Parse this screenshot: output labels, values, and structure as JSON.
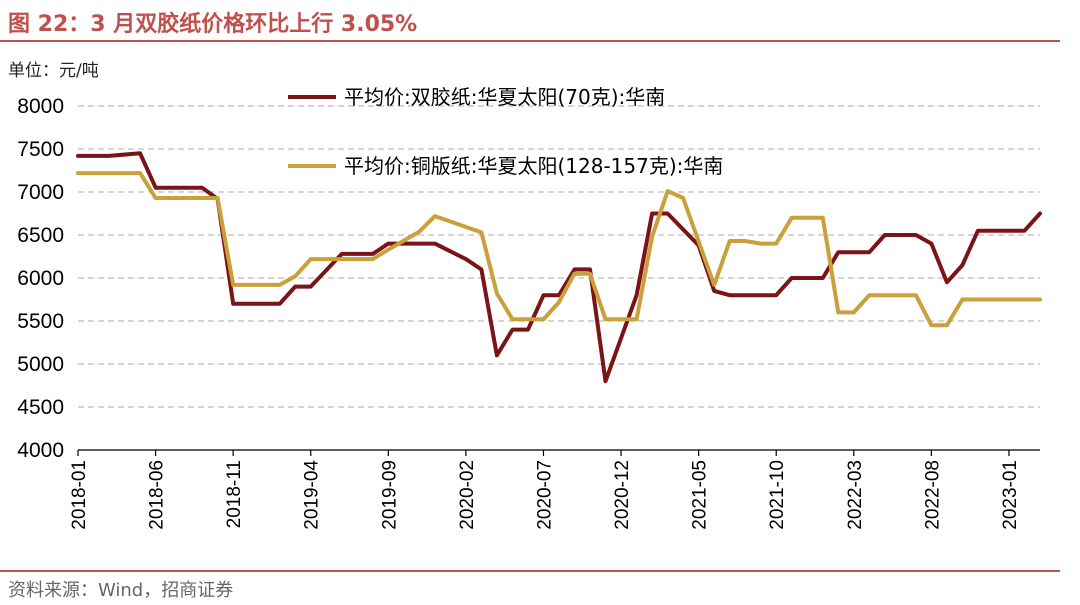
{
  "header": {
    "title": "图 22：3 月双胶纸价格环比上行 3.05%",
    "unit": "单位：元/吨",
    "source": "资料来源：Wind，招商证券"
  },
  "chart_data": {
    "type": "line",
    "ylim": [
      4000,
      8000
    ],
    "yticks": [
      "8000",
      "7500",
      "7000",
      "6500",
      "6000",
      "5500",
      "5000",
      "4500",
      "4000"
    ],
    "x_tick_labels": [
      "2018-01",
      "2018-06",
      "2018-11",
      "2019-04",
      "2019-09",
      "2020-02",
      "2020-07",
      "2020-12",
      "2021-05",
      "2021-10",
      "2022-03",
      "2022-08",
      "2023-01"
    ],
    "x_range": [
      "2018-01",
      "2023-03"
    ],
    "grid": "horizontal dashed",
    "legend_placement": "top-center",
    "series": [
      {
        "name": "平均价:双胶纸:华夏太阳(70克):华南",
        "color": "#7b1416",
        "points": [
          [
            "2018-01",
            7420
          ],
          [
            "2018-03",
            7420
          ],
          [
            "2018-05",
            7450
          ],
          [
            "2018-06",
            7050
          ],
          [
            "2018-09",
            7050
          ],
          [
            "2018-10",
            6920
          ],
          [
            "2018-11",
            5700
          ],
          [
            "2019-02",
            5700
          ],
          [
            "2019-03",
            5900
          ],
          [
            "2019-04",
            5900
          ],
          [
            "2019-06",
            6280
          ],
          [
            "2019-08",
            6280
          ],
          [
            "2019-09",
            6400
          ],
          [
            "2019-12",
            6400
          ],
          [
            "2020-02",
            6220
          ],
          [
            "2020-03",
            6100
          ],
          [
            "2020-04",
            5100
          ],
          [
            "2020-05",
            5400
          ],
          [
            "2020-06",
            5400
          ],
          [
            "2020-07",
            5800
          ],
          [
            "2020-08",
            5800
          ],
          [
            "2020-09",
            6100
          ],
          [
            "2020-10",
            6100
          ],
          [
            "2020-11",
            4800
          ],
          [
            "2021-01",
            5800
          ],
          [
            "2021-02",
            6750
          ],
          [
            "2021-03",
            6750
          ],
          [
            "2021-05",
            6380
          ],
          [
            "2021-06",
            5850
          ],
          [
            "2021-07",
            5800
          ],
          [
            "2021-10",
            5800
          ],
          [
            "2021-11",
            6000
          ],
          [
            "2022-01",
            6000
          ],
          [
            "2022-02",
            6300
          ],
          [
            "2022-04",
            6300
          ],
          [
            "2022-05",
            6500
          ],
          [
            "2022-07",
            6500
          ],
          [
            "2022-08",
            6400
          ],
          [
            "2022-09",
            5950
          ],
          [
            "2022-10",
            6150
          ],
          [
            "2022-11",
            6550
          ],
          [
            "2023-02",
            6550
          ],
          [
            "2023-03",
            6750
          ]
        ]
      },
      {
        "name": "平均价:铜版纸:华夏太阳(128-157克):华南",
        "color": "#c9a039",
        "points": [
          [
            "2018-01",
            7220
          ],
          [
            "2018-03",
            7220
          ],
          [
            "2018-05",
            7220
          ],
          [
            "2018-06",
            6930
          ],
          [
            "2018-10",
            6930
          ],
          [
            "2018-11",
            5920
          ],
          [
            "2019-02",
            5920
          ],
          [
            "2019-03",
            6020
          ],
          [
            "2019-04",
            6220
          ],
          [
            "2019-08",
            6220
          ],
          [
            "2019-09",
            6330
          ],
          [
            "2019-11",
            6540
          ],
          [
            "2019-12",
            6720
          ],
          [
            "2020-03",
            6530
          ],
          [
            "2020-04",
            5820
          ],
          [
            "2020-05",
            5520
          ],
          [
            "2020-07",
            5520
          ],
          [
            "2020-08",
            5720
          ],
          [
            "2020-09",
            6050
          ],
          [
            "2020-10",
            6050
          ],
          [
            "2020-11",
            5520
          ],
          [
            "2021-01",
            5520
          ],
          [
            "2021-02",
            6480
          ],
          [
            "2021-03",
            7010
          ],
          [
            "2021-04",
            6930
          ],
          [
            "2021-06",
            5920
          ],
          [
            "2021-07",
            6430
          ],
          [
            "2021-08",
            6430
          ],
          [
            "2021-09",
            6400
          ],
          [
            "2021-10",
            6400
          ],
          [
            "2021-11",
            6700
          ],
          [
            "2022-01",
            6700
          ],
          [
            "2022-02",
            5600
          ],
          [
            "2022-03",
            5600
          ],
          [
            "2022-04",
            5800
          ],
          [
            "2022-07",
            5800
          ],
          [
            "2022-08",
            5450
          ],
          [
            "2022-09",
            5450
          ],
          [
            "2022-10",
            5750
          ],
          [
            "2023-03",
            5750
          ]
        ]
      }
    ]
  }
}
